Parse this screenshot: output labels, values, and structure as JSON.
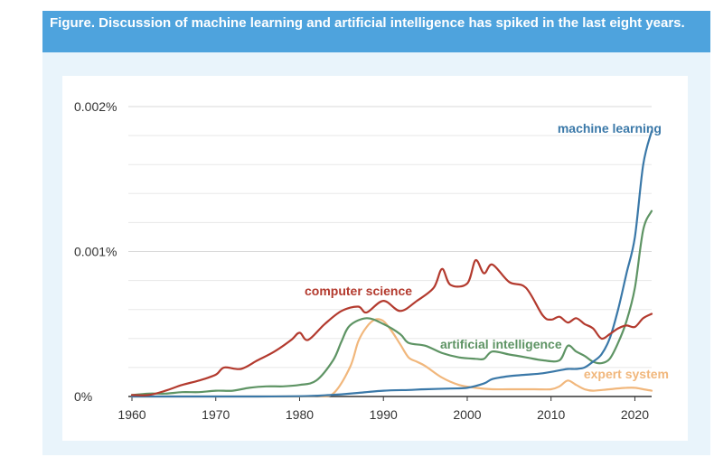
{
  "figure": {
    "title": "Figure. Discussion of machine learning and artificial intelligence has spiked in the last eight years."
  },
  "chart_data": {
    "type": "line",
    "title": "Figure. Discussion of machine learning and artificial intelligence has spiked in the last eight years.",
    "xlabel": "",
    "ylabel": "",
    "xlim": [
      1960,
      2022
    ],
    "ylim": [
      0,
      0.002
    ],
    "x_ticks": [
      "1960",
      "1970",
      "1980",
      "1990",
      "2000",
      "2010",
      "2020"
    ],
    "y_ticks": [
      "0%",
      "0.001%",
      "0.002%"
    ],
    "grid": true,
    "series": [
      {
        "name": "machine learning",
        "color": "#3a78a8",
        "x": [
          1960,
          1965,
          1970,
          1975,
          1980,
          1983,
          1985,
          1987,
          1990,
          1993,
          1995,
          1998,
          2000,
          2002,
          2003,
          2005,
          2007,
          2009,
          2011,
          2012,
          2013,
          2014,
          2015,
          2016,
          2017,
          2018,
          2019,
          2020,
          2021,
          2022
        ],
        "y": [
          0,
          0,
          0,
          0,
          2e-06,
          8e-06,
          1.5e-05,
          2.5e-05,
          4e-05,
          4.5e-05,
          5e-05,
          5.5e-05,
          6e-05,
          9e-05,
          0.00012,
          0.00014,
          0.00015,
          0.00016,
          0.00018,
          0.00019,
          0.00019,
          0.0002,
          0.00024,
          0.00029,
          0.0004,
          0.0006,
          0.00085,
          0.0011,
          0.0016,
          0.00183
        ]
      },
      {
        "name": "computer science",
        "color": "#b33a2e",
        "x": [
          1960,
          1962,
          1964,
          1966,
          1968,
          1970,
          1971,
          1973,
          1975,
          1977,
          1979,
          1980,
          1981,
          1983,
          1985,
          1987,
          1988,
          1990,
          1992,
          1994,
          1996,
          1997,
          1998,
          2000,
          2001,
          2002,
          2003,
          2005,
          2007,
          2009,
          2010,
          2011,
          2012,
          2013,
          2014,
          2015,
          2016,
          2017,
          2018,
          2019,
          2020,
          2021,
          2022
        ],
        "y": [
          1e-05,
          1e-05,
          4e-05,
          8e-05,
          0.00011,
          0.00015,
          0.0002,
          0.00019,
          0.00025,
          0.00031,
          0.00039,
          0.00044,
          0.00039,
          0.0005,
          0.00059,
          0.00062,
          0.00058,
          0.00066,
          0.00059,
          0.00066,
          0.00075,
          0.00088,
          0.00077,
          0.00078,
          0.00094,
          0.00085,
          0.00091,
          0.00079,
          0.00075,
          0.00056,
          0.00053,
          0.00055,
          0.00051,
          0.00054,
          0.0005,
          0.00047,
          0.0004,
          0.00043,
          0.00047,
          0.00049,
          0.00048,
          0.00054,
          0.00057
        ]
      },
      {
        "name": "artificial intelligence",
        "color": "#5e9464",
        "x": [
          1960,
          1962,
          1964,
          1966,
          1968,
          1970,
          1972,
          1974,
          1976,
          1978,
          1980,
          1982,
          1984,
          1985,
          1986,
          1988,
          1990,
          1992,
          1993,
          1995,
          1997,
          1999,
          2001,
          2002,
          2003,
          2005,
          2007,
          2009,
          2011,
          2012,
          2013,
          2014,
          2015,
          2016,
          2017,
          2018,
          2019,
          2020,
          2021,
          2022
        ],
        "y": [
          1e-05,
          2e-05,
          2e-05,
          3e-05,
          3e-05,
          4e-05,
          4e-05,
          6e-05,
          7e-05,
          7e-05,
          8e-05,
          0.00011,
          0.00025,
          0.00038,
          0.00049,
          0.00054,
          0.0005,
          0.00043,
          0.00037,
          0.00035,
          0.0003,
          0.00027,
          0.00026,
          0.00026,
          0.00031,
          0.00029,
          0.00027,
          0.00025,
          0.00025,
          0.00035,
          0.00031,
          0.00028,
          0.00024,
          0.00023,
          0.00026,
          0.00037,
          0.00052,
          0.00075,
          0.00115,
          0.00128
        ]
      },
      {
        "name": "expert system",
        "color": "#f1b77c",
        "x": [
          1960,
          1975,
          1980,
          1982,
          1984,
          1986,
          1987,
          1988,
          1989,
          1990,
          1991,
          1992,
          1993,
          1994,
          1995,
          1997,
          1999,
          2001,
          2003,
          2005,
          2008,
          2010,
          2011,
          2012,
          2013,
          2014,
          2015,
          2017,
          2019,
          2020,
          2021,
          2022
        ],
        "y": [
          0,
          0,
          0,
          5e-06,
          2e-05,
          0.0002,
          0.00038,
          0.00048,
          0.00053,
          0.00052,
          0.00045,
          0.00036,
          0.00027,
          0.00024,
          0.00021,
          0.00013,
          8e-05,
          6e-05,
          5e-05,
          5e-05,
          5e-05,
          5e-05,
          7e-05,
          0.00011,
          8e-05,
          5e-05,
          4e-05,
          5e-05,
          6e-05,
          6e-05,
          5e-05,
          4e-05
        ]
      }
    ]
  }
}
